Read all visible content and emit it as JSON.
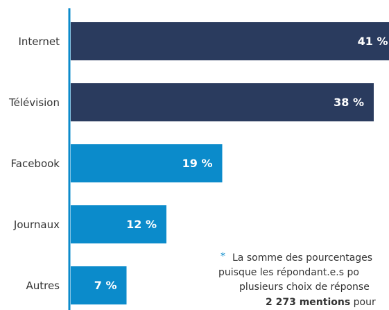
{
  "chart_data": {
    "type": "bar",
    "orientation": "horizontal",
    "categories": [
      "Internet",
      "Télévision",
      "Facebook",
      "Journaux",
      "Autres"
    ],
    "values": [
      41,
      38,
      19,
      12,
      7
    ],
    "value_labels": [
      "41 %",
      "38 %",
      "19 %",
      "12 %",
      "7 %"
    ],
    "colors": [
      "#2a3b5e",
      "#2a3b5e",
      "#0b8bcb",
      "#0b8bcb",
      "#0b8bcb"
    ],
    "axis_color": "#0b8bcb",
    "annotation": {
      "marker": "*",
      "lines": [
        "La somme des pourcentages",
        "puisque les répondant.e.s po",
        "plusieurs choix de réponse"
      ],
      "last_bold": "2 273 mentions",
      "last_rest": " pour"
    }
  }
}
